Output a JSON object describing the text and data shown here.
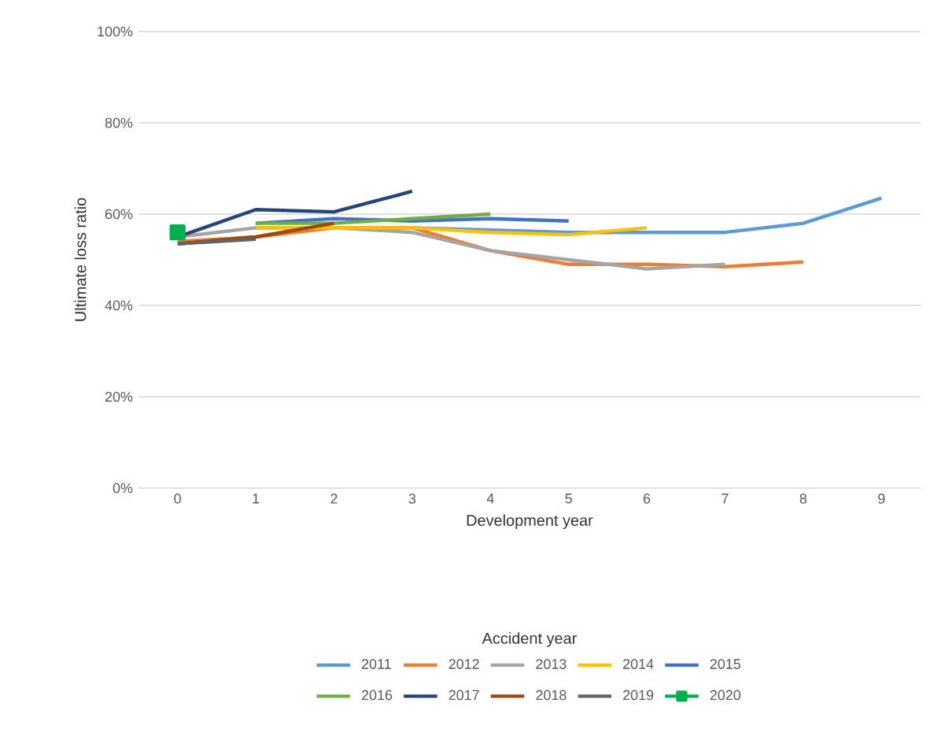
{
  "chart_data": {
    "type": "line",
    "xlabel": "Development year",
    "ylabel": "Ultimate loss ratio",
    "legend_title": "Accident year",
    "categories": [
      "0",
      "1",
      "2",
      "3",
      "4",
      "5",
      "6",
      "7",
      "8",
      "9"
    ],
    "ylim": [
      0,
      100
    ],
    "yticks": [
      {
        "value": 0,
        "label": "0%"
      },
      {
        "value": 20,
        "label": "20%"
      },
      {
        "value": 40,
        "label": "40%"
      },
      {
        "value": 60,
        "label": "60%"
      },
      {
        "value": 80,
        "label": "80%"
      },
      {
        "value": 100,
        "label": "100%"
      }
    ],
    "grid": "y",
    "legend": "bottom",
    "marker": "none",
    "line_style": "solid",
    "series": [
      {
        "name": "2011",
        "color": "#5b9bd5",
        "values": [
          null,
          57,
          57,
          57,
          56.5,
          56,
          56,
          56,
          58,
          63.5
        ]
      },
      {
        "name": "2012",
        "color": "#ed7d31",
        "values": [
          54,
          55,
          57,
          57,
          52,
          49,
          49,
          48.5,
          49.5,
          null
        ]
      },
      {
        "name": "2013",
        "color": "#a5a5a5",
        "values": [
          55,
          57,
          57,
          56,
          52,
          50,
          48,
          49,
          null,
          null
        ]
      },
      {
        "name": "2014",
        "color": "#ffc000",
        "values": [
          null,
          57,
          57,
          57,
          56,
          55.5,
          57,
          null,
          null,
          null
        ]
      },
      {
        "name": "2015",
        "color": "#4472c4",
        "values": [
          null,
          58,
          59,
          58.5,
          59,
          58.5,
          null,
          null,
          null,
          null
        ]
      },
      {
        "name": "2016",
        "color": "#70ad47",
        "values": [
          null,
          58,
          58,
          59,
          60,
          null,
          null,
          null,
          null,
          null
        ]
      },
      {
        "name": "2017",
        "color": "#264478",
        "values": [
          55,
          61,
          60.5,
          65,
          null,
          null,
          null,
          null,
          null,
          null
        ]
      },
      {
        "name": "2018",
        "color": "#9e480e",
        "values": [
          53.5,
          55,
          58,
          null,
          null,
          null,
          null,
          null,
          null,
          null
        ]
      },
      {
        "name": "2019",
        "color": "#636363",
        "values": [
          53.5,
          54.5,
          null,
          null,
          null,
          null,
          null,
          null,
          null,
          null
        ]
      },
      {
        "name": "2020",
        "color": "#00b050",
        "marker": "square",
        "values": [
          56,
          null,
          null,
          null,
          null,
          null,
          null,
          null,
          null,
          null
        ]
      }
    ]
  }
}
